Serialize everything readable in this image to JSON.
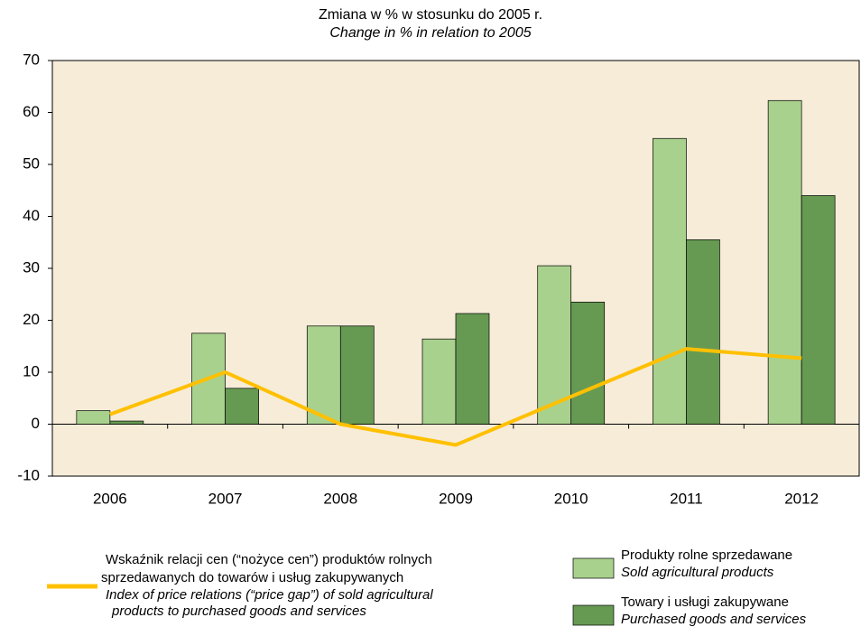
{
  "chart_data": {
    "type": "bar",
    "title": "Zmiana w % w stosunku do 2005 r.",
    "subtitle": "Change in % in relation to 2005",
    "categories": [
      "2006",
      "2007",
      "2008",
      "2009",
      "2010",
      "2011",
      "2012"
    ],
    "series": [
      {
        "name": "Produkty rolne sprzedawane",
        "name_en": "Sold agricultural products",
        "type": "bar",
        "color": "#a9d18e",
        "values": [
          2.6,
          17.5,
          18.9,
          16.4,
          30.5,
          55,
          62.3
        ]
      },
      {
        "name": "Towary i usługi zakupywane",
        "name_en": "Purchased goods and services",
        "type": "bar",
        "color": "#669a52",
        "values": [
          0.6,
          6.9,
          18.9,
          21.3,
          23.5,
          35.5,
          44
        ]
      },
      {
        "name": [
          "Wskaźnik relacji cen (“nożyce cen”) produktów rolnych",
          "sprzedawanych do towarów i usług zakupywanych"
        ],
        "name_en": [
          "Index of price relations (“price gap”) of sold agricultural",
          "products to purchased goods and services"
        ],
        "type": "line",
        "color": "#ffc000",
        "values": [
          1.9,
          10,
          0,
          -4,
          5.3,
          14.5,
          12.7
        ]
      }
    ],
    "ylim": [
      -10,
      70
    ],
    "yticks": [
      -10,
      0,
      10,
      20,
      30,
      40,
      50,
      60,
      70
    ],
    "grid": false,
    "plot_background": "#f6ecd8"
  }
}
